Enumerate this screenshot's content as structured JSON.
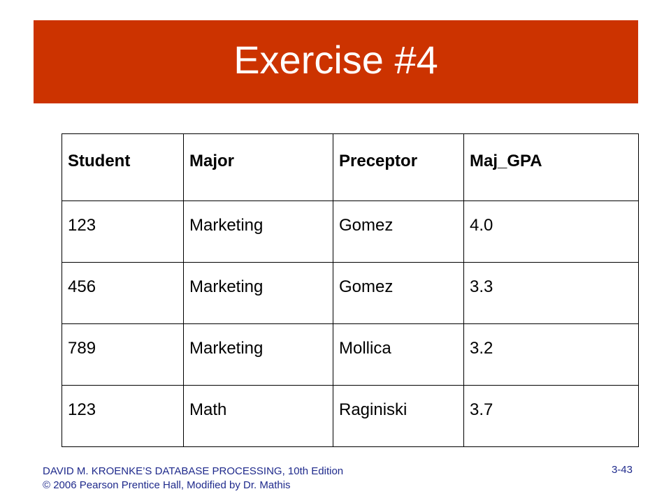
{
  "slide": {
    "title": "Exercise #4",
    "accent_color": "#cc3300",
    "footer_color": "#1f2a8c"
  },
  "table": {
    "headers": [
      "Student",
      "Major",
      "Preceptor",
      "Maj_GPA"
    ],
    "rows": [
      [
        "123",
        "Marketing",
        "Gomez",
        "4.0"
      ],
      [
        "456",
        "Marketing",
        "Gomez",
        "3.3"
      ],
      [
        "789",
        "Marketing",
        "Mollica",
        "3.2"
      ],
      [
        "123",
        "Math",
        "Raginiski",
        "3.7"
      ]
    ]
  },
  "footer": {
    "line1": "DAVID M. KROENKE’S DATABASE PROCESSING, 10th Edition",
    "line2": "© 2006 Pearson Prentice Hall, Modified by Dr. Mathis",
    "page_number": "3-43"
  }
}
